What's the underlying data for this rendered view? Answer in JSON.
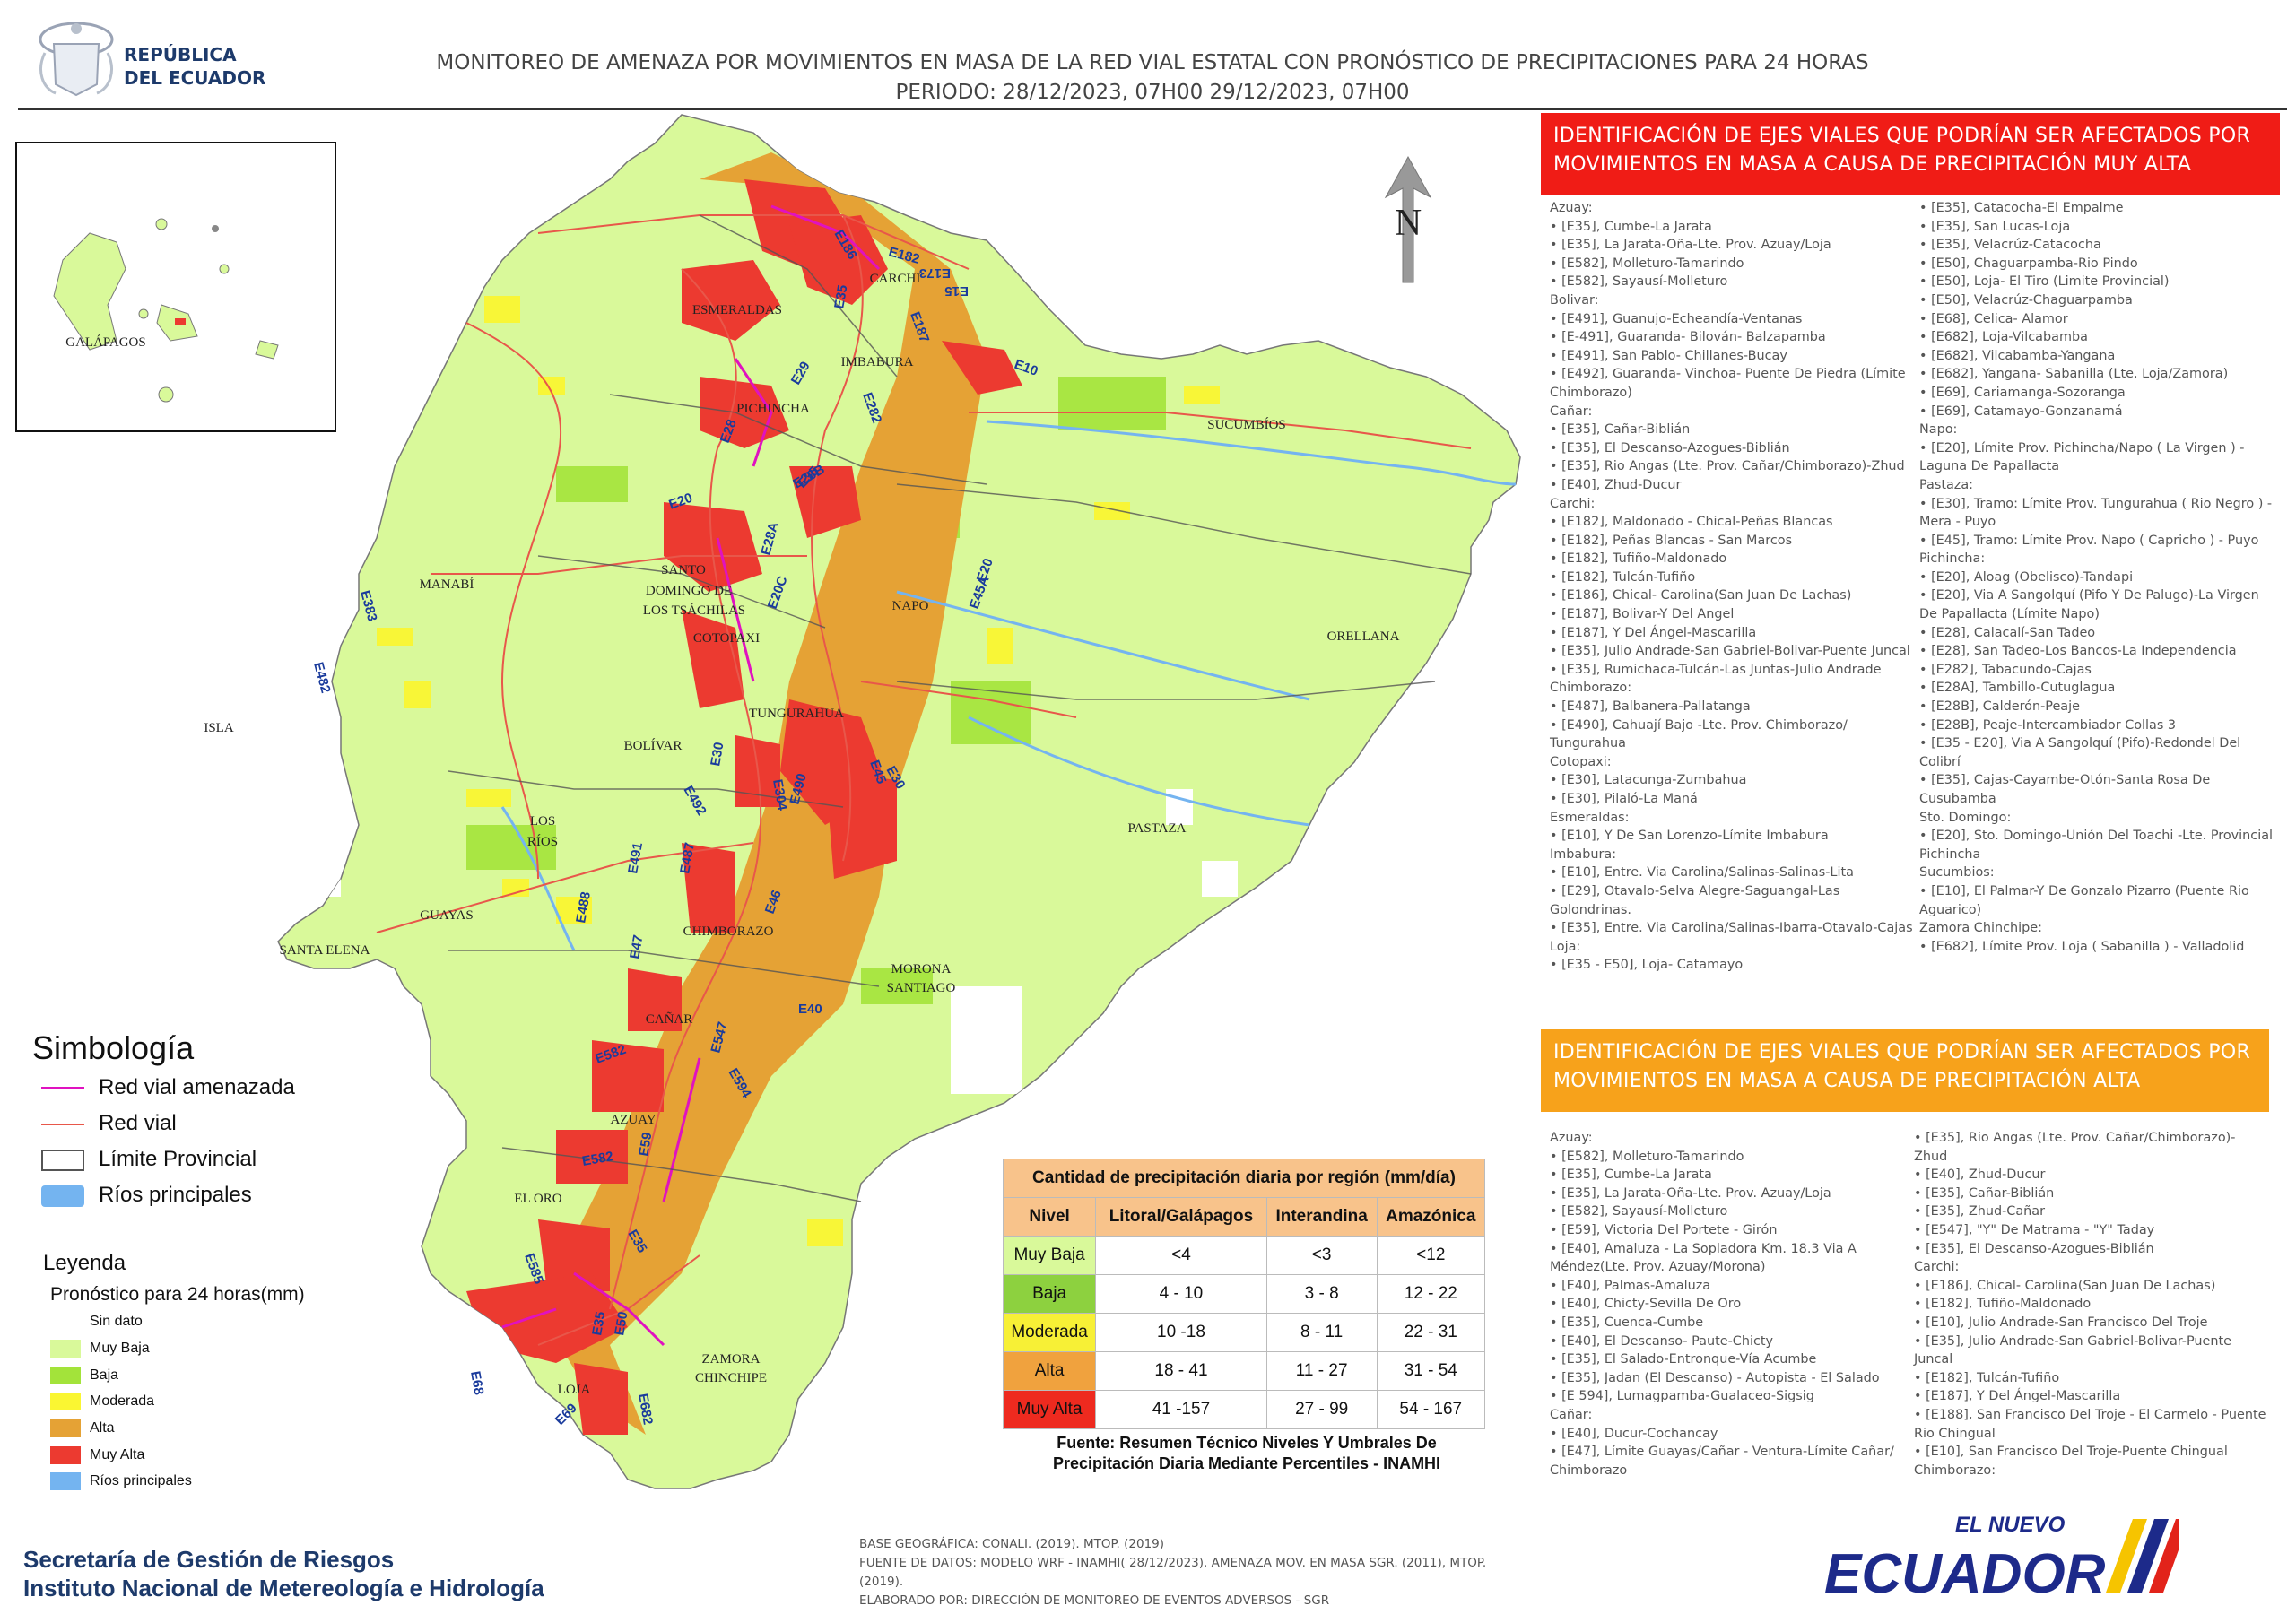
{
  "header": {
    "country_line1": "REPÚBLICA",
    "country_line2": "DEL ECUADOR",
    "title_line1": "MONITOREO DE AMENAZA POR MOVIMIENTOS EN MASA DE LA RED VIAL  ESTATAL  CON PRONÓSTICO  DE  PRECIPITACIONES PARA 24 HORAS",
    "title_line2": "PERIODO: 28/12/2023, 07H00 29/12/2023, 07H00"
  },
  "map": {
    "north_label": "N",
    "galapagos_label": "GALÁPAGOS",
    "provinces": [
      "CARCHI",
      "ESMERALDAS",
      "IMBABURA",
      "PICHINCHA",
      "SUCUMBÍOS",
      "MANABÍ",
      "SANTO",
      "DOMINGO DE",
      "LOS TSÁCHILAS",
      "COTOPAXI",
      "NAPO",
      "ORELLANA",
      "TUNGURAHUA",
      "BOLÍVAR",
      "LOS",
      "RÍOS",
      "ISLA",
      "PASTAZA",
      "GUAYAS",
      "CHIMBORAZO",
      "SANTA ELENA",
      "MORONA",
      "SANTIAGO",
      "CAÑAR",
      "AZUAY",
      "EL ORO",
      "ZAMORA",
      "CHINCHIPE",
      "LOJA"
    ],
    "roads": [
      "E182",
      "E187",
      "E186",
      "E35",
      "E10",
      "E15",
      "E29",
      "E282",
      "E28",
      "E35",
      "E28A",
      "E28B",
      "E20",
      "E20C",
      "E45A",
      "E20",
      "E383",
      "E482",
      "E30",
      "E304",
      "E45",
      "E492",
      "E30",
      "E490",
      "E487",
      "E491",
      "E488",
      "E47",
      "E46",
      "E40",
      "E582",
      "E547",
      "E594",
      "E59",
      "E35",
      "E585",
      "E35",
      "E50",
      "E69",
      "E68",
      "E682",
      "E582",
      "E173"
    ]
  },
  "legend": {
    "simbologia_title": "Simbología",
    "items": [
      {
        "label": "Red vial amenazada",
        "color": "#e012c0"
      },
      {
        "label": "Red vial",
        "color": "#e8574a"
      },
      {
        "label": "Límite Provincial",
        "color": "#555555"
      },
      {
        "label": "Ríos principales",
        "color": "#74b4f0"
      }
    ],
    "leyenda_title": "Leyenda",
    "pronostico_title": "Pronóstico para 24 horas(mm)",
    "levels": [
      {
        "label": "Sin dato",
        "color": "#ffffff"
      },
      {
        "label": "Muy Baja",
        "color": "#d9f99a"
      },
      {
        "label": "Baja",
        "color": "#a3e33a"
      },
      {
        "label": "Moderada",
        "color": "#faf632"
      },
      {
        "label": "Alta",
        "color": "#e5a235"
      },
      {
        "label": "Muy Alta",
        "color": "#ec3a30"
      },
      {
        "label": "Ríos principales",
        "color": "#74b4f0"
      }
    ]
  },
  "precip_table": {
    "title": "Cantidad de precipitación diaria por región (mm/día)",
    "headers": [
      "Nivel",
      "Litoral/Galápagos",
      "Interandina",
      "Amazónica"
    ],
    "rows": [
      {
        "nivel": "Muy Baja",
        "litoral": "<4",
        "interandina": "<3",
        "amazonica": "<12",
        "color": "#d9f99a"
      },
      {
        "nivel": "Baja",
        "litoral": "4 - 10",
        "interandina": "3 - 8",
        "amazonica": "12 - 22",
        "color": "#8dd13f"
      },
      {
        "nivel": "Moderada",
        "litoral": "10 -18",
        "interandina": "8 - 11",
        "amazonica": "22 - 31",
        "color": "#f7f036"
      },
      {
        "nivel": "Alta",
        "litoral": "18 - 41",
        "interandina": "11 - 27",
        "amazonica": "31 - 54",
        "color": "#f0a23e"
      },
      {
        "nivel": "Muy Alta",
        "litoral": "41 -157",
        "interandina": "27 - 99",
        "amazonica": "54 - 167",
        "color": "#ee2a1f"
      }
    ],
    "source_line1": "Fuente: Resumen Técnico Niveles Y Umbrales De",
    "source_line2": "Precipitación Diaria Mediante Percentiles - INAMHI"
  },
  "muy_alta": {
    "heading": "IDENTIFICACIÓN DE EJES VIALES QUE PODRÍAN SER AFECTADOS POR MOVIMIENTOS EN MASA A CAUSA DE PRECIPITACIÓN MUY ALTA",
    "col1": [
      "Azuay:",
      "• [E35], Cumbe-La Jarata",
      "• [E35], La Jarata-Oña-Lte. Prov. Azuay/Loja",
      "• [E582], Molleturo-Tamarindo",
      "• [E582], Sayausí-Molleturo",
      "Bolivar:",
      "• [E491], Guanujo-Echeandía-Ventanas",
      "• [E-491], Guaranda- Bilován- Balzapamba",
      "• [E491], San Pablo- Chillanes-Bucay",
      "• [E492], Guaranda- Vinchoa- Puente De Piedra (Límite Chimborazo)",
      "Cañar:",
      "• [E35], Cañar-Biblián",
      "• [E35], El Descanso-Azogues-Biblián",
      "• [E35], Rio Angas (Lte. Prov. Cañar/Chimborazo)-Zhud",
      "• [E40], Zhud-Ducur",
      "Carchi:",
      "• [E182], Maldonado - Chical-Peñas Blancas",
      "• [E182], Peñas Blancas - San Marcos",
      "• [E182], Tufiño-Maldonado",
      "• [E182], Tulcán-Tufiño",
      "• [E186], Chical- Carolina(San Juan De Lachas)",
      "• [E187], Bolivar-Y Del Angel",
      "• [E187], Y Del Ángel-Mascarilla",
      "• [E35], Julio Andrade-San Gabriel-Bolivar-Puente Juncal",
      "• [E35], Rumichaca-Tulcán-Las Juntas-Julio Andrade",
      "Chimborazo:",
      "• [E487], Balbanera-Pallatanga",
      "• [E490], Cahuají Bajo -Lte. Prov. Chimborazo/ Tungurahua",
      "Cotopaxi:",
      "• [E30], Latacunga-Zumbahua",
      "• [E30], Pilaló-La Maná",
      "Esmeraldas:",
      "• [E10], Y De San Lorenzo-Límite Imbabura",
      "Imbabura:",
      "• [E10], Entre. Via Carolina/Salinas-Salinas-Lita",
      "• [E29], Otavalo-Selva Alegre-Saguangal-Las Golondrinas.",
      "• [E35], Entre. Via Carolina/Salinas-Ibarra-Otavalo-Cajas",
      "Loja:",
      "• [E35 - E50], Loja- Catamayo"
    ],
    "col2": [
      "• [E35], Catacocha-El Empalme",
      "• [E35], San Lucas-Loja",
      "• [E35], Velacrúz-Catacocha",
      "• [E50], Chaguarpamba-Rio Pindo",
      "• [E50], Loja- El Tiro (Limite Provincial)",
      "• [E50], Velacrúz-Chaguarpamba",
      "• [E68], Celica- Alamor",
      "• [E682], Loja-Vilcabamba",
      "• [E682], Vilcabamba-Yangana",
      "• [E682], Yangana- Sabanilla (Lte. Loja/Zamora)",
      "• [E69], Cariamanga-Sozoranga",
      "• [E69], Catamayo-Gonzanamá",
      "Napo:",
      "• [E20], Límite Prov. Pichincha/Napo ( La Virgen ) - Laguna De Papallacta",
      "Pastaza:",
      "• [E30], Tramo: Límite Prov. Tungurahua ( Rio Negro ) - Mera - Puyo",
      "• [E45], Tramo: Límite Prov. Napo ( Capricho ) - Puyo",
      "Pichincha:",
      "• [E20], Aloag (Obelisco)-Tandapi",
      "• [E20], Via A Sangolquí (Pifo Y De Palugo)-La Virgen De Papallacta (Límite Napo)",
      "• [E28], Calacalí-San Tadeo",
      "• [E28], San Tadeo-Los Bancos-La Independencia",
      "• [E282], Tabacundo-Cajas",
      "• [E28A], Tambillo-Cutuglagua",
      "• [E28B], Calderón-Peaje",
      "• [E28B], Peaje-Intercambiador Collas 3",
      "• [E35 - E20], Via A Sangolquí (Pifo)-Redondel Del Colibrí",
      "• [E35], Cajas-Cayambe-Otón-Santa Rosa De Cusubamba",
      "Sto. Domingo:",
      "• [E20], Sto. Domingo-Unión Del Toachi -Lte. Provincial Pichincha",
      "Sucumbios:",
      "• [E10], El Palmar-Y De Gonzalo Pizarro (Puente Rio Aguarico)",
      "Zamora Chinchipe:",
      "• [E682], Límite Prov.  Loja ( Sabanilla ) - Valladolid"
    ]
  },
  "alta": {
    "heading": "IDENTIFICACIÓN DE EJES VIALES QUE PODRÍAN SER AFECTADOS POR MOVIMIENTOS EN MASA A CAUSA DE PRECIPITACIÓN  ALTA",
    "col1": [
      "Azuay:",
      "• [E582], Molleturo-Tamarindo",
      "• [E35], Cumbe-La Jarata",
      "• [E35], La Jarata-Oña-Lte. Prov. Azuay/Loja",
      "• [E582], Sayausí-Molleturo",
      "• [E59], Victoria Del Portete - Girón",
      "• [E40], Amaluza - La Sopladora Km. 18.3 Via A Méndez(Lte. Prov. Azuay/Morona)",
      "• [E40], Palmas-Amaluza",
      "• [E40], Chicty-Sevilla De Oro",
      "• [E35], Cuenca-Cumbe",
      "• [E40], El Descanso- Paute-Chicty",
      "• [E35], El Salado-Entronque-Vía Acumbe",
      "• [E35], Jadan (El Descanso) -  Autopista - El Salado",
      "• [E 594], Lumagpamba-Gualaceo-Sigsig",
      "Cañar:",
      "• [E40], Ducur-Cochancay",
      "• [E47], Límite Guayas/Cañar - Ventura-Límite Cañar/ Chimborazo"
    ],
    "col2": [
      "• [E35], Rio Angas (Lte. Prov. Cañar/Chimborazo)- Zhud",
      "• [E40], Zhud-Ducur",
      "• [E35], Cañar-Biblián",
      "• [E35], Zhud-Cañar",
      "• [E547], \"Y\" De Matrama - \"Y\" Taday",
      "• [E35], El Descanso-Azogues-Biblián",
      "Carchi:",
      "• [E186], Chical- Carolina(San Juan De Lachas)",
      "• [E182], Tufiño-Maldonado",
      "• [E10], Julio Andrade-San Francisco Del Troje",
      "• [E35], Julio Andrade-San Gabriel-Bolivar-Puente Juncal",
      "• [E182], Tulcán-Tufiño",
      "• [E187], Y Del Ángel-Mascarilla",
      "• [E188], San Francisco Del Troje - El Carmelo - Puente Rio Chingual",
      "• [E10], San Francisco Del Troje-Puente Chingual",
      "Chimborazo:"
    ]
  },
  "footer": {
    "org1": "Secretaría de Gestión de Riesgos",
    "org2": "Instituto Nacional de Metereología e Hidrología",
    "base1": "BASE GEOGRÁFICA: CONALI. (2019). MTOP. (2019)",
    "base2": "FUENTE DE DATOS: MODELO WRF - INAMHI( 28/12/2023).  AMENAZA MOV. EN MASA SGR. (2011), MTOP. (2019).",
    "base3": "ELABORADO POR: DIRECCIÓN DE MONITOREO DE EVENTOS ADVERSOS - SGR",
    "logo_top": "EL NUEVO",
    "logo_main": "ECUADOR"
  }
}
